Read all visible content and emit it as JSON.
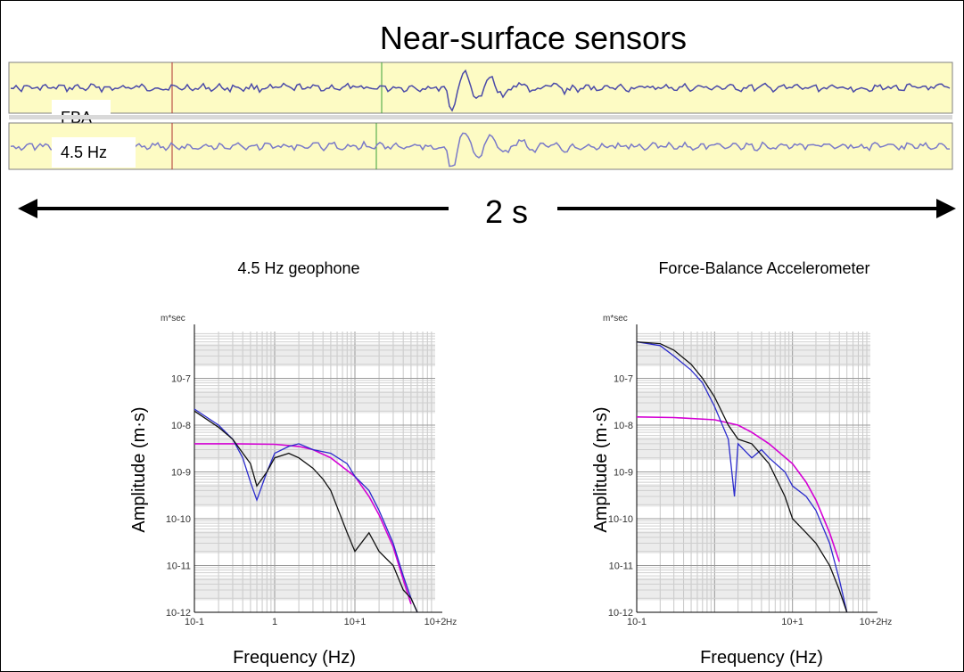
{
  "title": "Near-surface sensors",
  "traces": [
    {
      "label": "FBA",
      "strip_color": "#fdfbc4",
      "wave_color": "#4a4aa8"
    },
    {
      "label": "4.5 Hz",
      "strip_color": "#fdfbc4",
      "wave_color": "#7a7ac8"
    }
  ],
  "duration_label": "2 s",
  "chart_data": [
    {
      "type": "line",
      "title": "4.5 Hz geophone",
      "xlabel": "Frequency (Hz)",
      "ylabel": "Amplitude (m·s)",
      "unit_label": "m*sec",
      "x_unit": "Hz",
      "x_scale": "log",
      "y_scale": "log",
      "xlim": [
        0.1,
        100
      ],
      "ylim": [
        1e-12,
        1e-06
      ],
      "x_ticks": [
        "10-1",
        "1",
        "10+1",
        "10+2"
      ],
      "y_ticks": [
        "10-12",
        "10-11",
        "10-10",
        "10-9",
        "10-8",
        "10-7"
      ],
      "grid": true,
      "series": [
        {
          "color": "#d400d4",
          "x": [
            0.1,
            0.3,
            1,
            2,
            3,
            5,
            10,
            15,
            20,
            30,
            40,
            50
          ],
          "values": [
            4e-09,
            4e-09,
            3.9e-09,
            3.5e-09,
            3e-09,
            2e-09,
            8e-10,
            3e-10,
            1.2e-10,
            2.5e-11,
            5e-12,
            1.5e-12
          ]
        },
        {
          "color": "#2b2bcc",
          "x": [
            0.1,
            0.2,
            0.3,
            0.4,
            0.5,
            0.6,
            0.8,
            1,
            1.5,
            2,
            3,
            5,
            8,
            10,
            15,
            20,
            30,
            40,
            50,
            60
          ],
          "values": [
            2.2e-08,
            1e-08,
            5e-09,
            2e-09,
            6e-10,
            2.5e-10,
            1e-09,
            2.5e-09,
            3.5e-09,
            4e-09,
            3e-09,
            2.5e-09,
            1.5e-09,
            8e-10,
            4e-10,
            1.5e-10,
            3e-11,
            6e-12,
            2e-12,
            1e-12
          ]
        },
        {
          "color": "#111111",
          "x": [
            0.1,
            0.2,
            0.3,
            0.5,
            0.6,
            0.8,
            1,
            1.5,
            2,
            3,
            4,
            5,
            8,
            10,
            15,
            20,
            30,
            40,
            50,
            60
          ],
          "values": [
            2e-08,
            9e-09,
            5e-09,
            1.5e-09,
            5e-10,
            1e-09,
            2e-09,
            2.5e-09,
            2e-09,
            1.2e-09,
            7e-10,
            4e-10,
            5e-11,
            2e-11,
            5e-11,
            2e-11,
            1e-11,
            3e-12,
            2e-12,
            1e-12
          ]
        }
      ]
    },
    {
      "type": "line",
      "title": "Force-Balance Accelerometer",
      "xlabel": "Frequency (Hz)",
      "ylabel": "Amplitude (m·s)",
      "unit_label": "m*sec",
      "x_unit": "Hz",
      "x_scale": "log",
      "y_scale": "log",
      "xlim": [
        0.1,
        100
      ],
      "ylim": [
        1e-12,
        1e-06
      ],
      "x_ticks": [
        "10-1",
        "10+1",
        "10+2"
      ],
      "y_ticks": [
        "10-12",
        "10-11",
        "10-10",
        "10-9",
        "10-8",
        "10-7"
      ],
      "grid": true,
      "series": [
        {
          "color": "#d400d4",
          "x": [
            0.1,
            0.3,
            1,
            2,
            3,
            5,
            10,
            15,
            20,
            30,
            40
          ],
          "values": [
            1.5e-08,
            1.45e-08,
            1.3e-08,
            1e-08,
            7e-09,
            4e-09,
            1.5e-09,
            6e-10,
            2.5e-10,
            5e-11,
            1.2e-11
          ]
        },
        {
          "color": "#2b2bcc",
          "x": [
            0.1,
            0.2,
            0.3,
            0.5,
            0.7,
            1,
            1.5,
            1.8,
            2,
            3,
            4,
            5,
            8,
            10,
            15,
            20,
            30,
            40,
            50
          ],
          "values": [
            6e-07,
            5e-07,
            3e-07,
            1.5e-07,
            8e-08,
            2.5e-08,
            5e-09,
            3e-10,
            4e-09,
            2e-09,
            3e-09,
            2e-09,
            1e-09,
            5e-10,
            3e-10,
            1.5e-10,
            3e-11,
            5e-12,
            1e-12
          ]
        },
        {
          "color": "#111111",
          "x": [
            0.1,
            0.2,
            0.3,
            0.5,
            0.7,
            1,
            1.5,
            2,
            3,
            5,
            8,
            10,
            15,
            20,
            30,
            40,
            50
          ],
          "values": [
            6e-07,
            5.5e-07,
            4e-07,
            2e-07,
            1e-07,
            4e-08,
            1e-08,
            5e-09,
            4e-09,
            1.5e-09,
            3e-10,
            1e-10,
            5e-11,
            3e-11,
            1e-11,
            3e-12,
            1e-12
          ]
        }
      ]
    }
  ]
}
